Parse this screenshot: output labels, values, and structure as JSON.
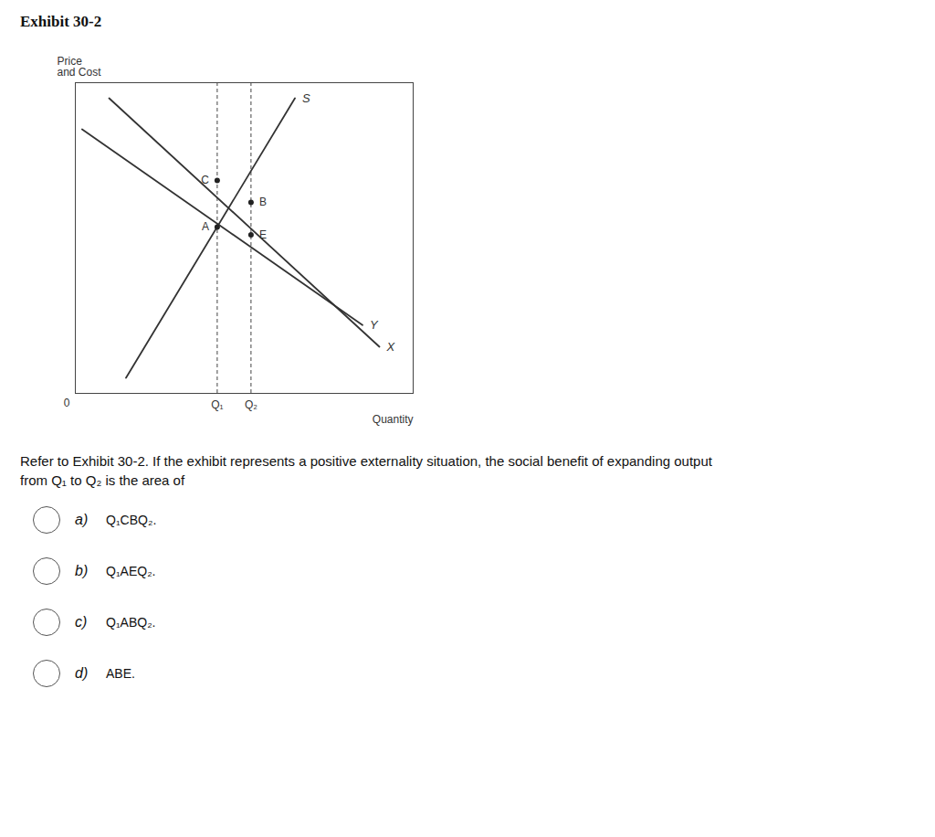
{
  "chart_data": {
    "type": "line",
    "title": "Exhibit 30-2",
    "xlabel": "Quantity",
    "ylabel": "Price\nand Cost",
    "origin_label": "0",
    "xlim": [
      0,
      10
    ],
    "ylim": [
      0,
      10
    ],
    "xticks": [],
    "yticks": [],
    "tick_labels": false,
    "grid": false,
    "series": [
      {
        "name": "S",
        "x": [
          1.5,
          6.5
        ],
        "values": [
          0.5,
          9.5
        ],
        "line_style": "solid"
      },
      {
        "name": "X",
        "x": [
          1.0,
          9.0
        ],
        "values": [
          9.5,
          1.5
        ],
        "line_style": "solid"
      },
      {
        "name": "Y",
        "x": [
          0.2,
          8.5
        ],
        "values": [
          8.5,
          2.2
        ],
        "line_style": "solid"
      }
    ],
    "vlines": [
      {
        "x": 4.2,
        "label": "Q₁",
        "line_style": "dashed"
      },
      {
        "x": 5.2,
        "label": "Q₂",
        "line_style": "dashed"
      }
    ],
    "points": [
      {
        "label": "A",
        "x": 4.2,
        "y": 5.35
      },
      {
        "label": "B",
        "x": 5.2,
        "y": 6.15
      },
      {
        "label": "C",
        "x": 4.2,
        "y": 6.85
      },
      {
        "label": "E",
        "x": 5.2,
        "y": 5.1
      }
    ],
    "question_text": "Refer to Exhibit 30-2. If the exhibit represents a positive externality situation, the social benefit of expanding output\nfrom Q₁ to Q₂ is the area of",
    "choices": [
      {
        "label": "a)",
        "text": "Q₁CBQ₂."
      },
      {
        "label": "b)",
        "text": "Q₁AEQ₂."
      },
      {
        "label": "c)",
        "text": "Q₁ABQ₂."
      },
      {
        "label": "d)",
        "text": "ABE."
      }
    ]
  }
}
